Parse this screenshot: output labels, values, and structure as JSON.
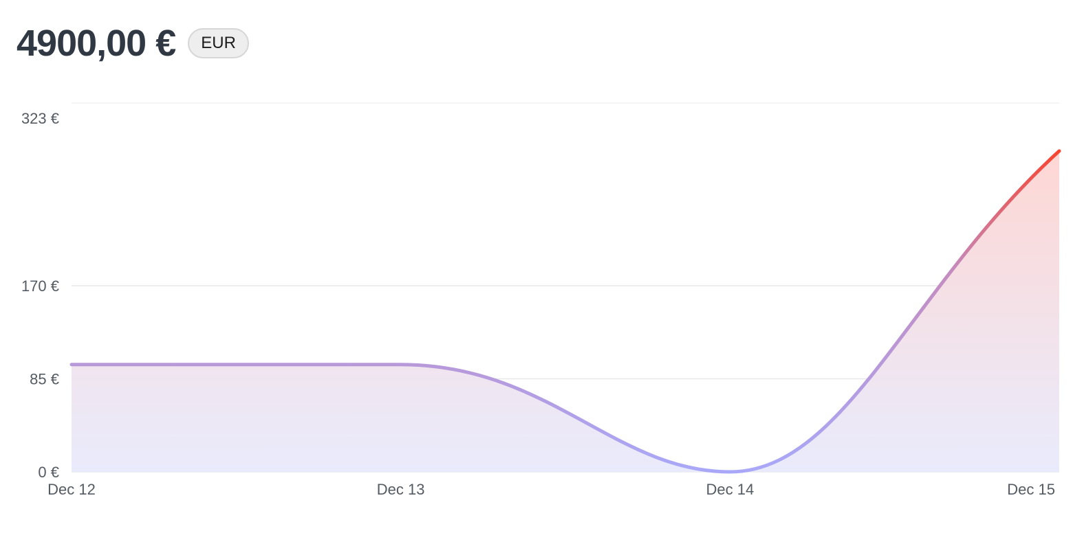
{
  "header": {
    "amount": "4900,00 €",
    "currency_badge": "EUR"
  },
  "chart_data": {
    "type": "area",
    "title": "",
    "xlabel": "",
    "ylabel": "",
    "x": [
      "Dec 12",
      "Dec 13",
      "Dec 14",
      "Dec 15"
    ],
    "y_ticks": [
      {
        "value": 0,
        "label": "0 €"
      },
      {
        "value": 85,
        "label": "85 €"
      },
      {
        "value": 170,
        "label": "170 €"
      },
      {
        "value": 323,
        "label": "323 €"
      }
    ],
    "ylim": [
      0,
      323
    ],
    "grid": true,
    "legend": "none",
    "series": [
      {
        "values": [
          98,
          98,
          0,
          293
        ]
      }
    ],
    "colors": {
      "line_low": "#a9a8f8",
      "line_mid": "#c48cc0",
      "line_high": "#fd3c1e",
      "fill_low": "#e9ebfc",
      "fill_high": "#ffd6d2",
      "grid": "#e8e8e8"
    }
  }
}
